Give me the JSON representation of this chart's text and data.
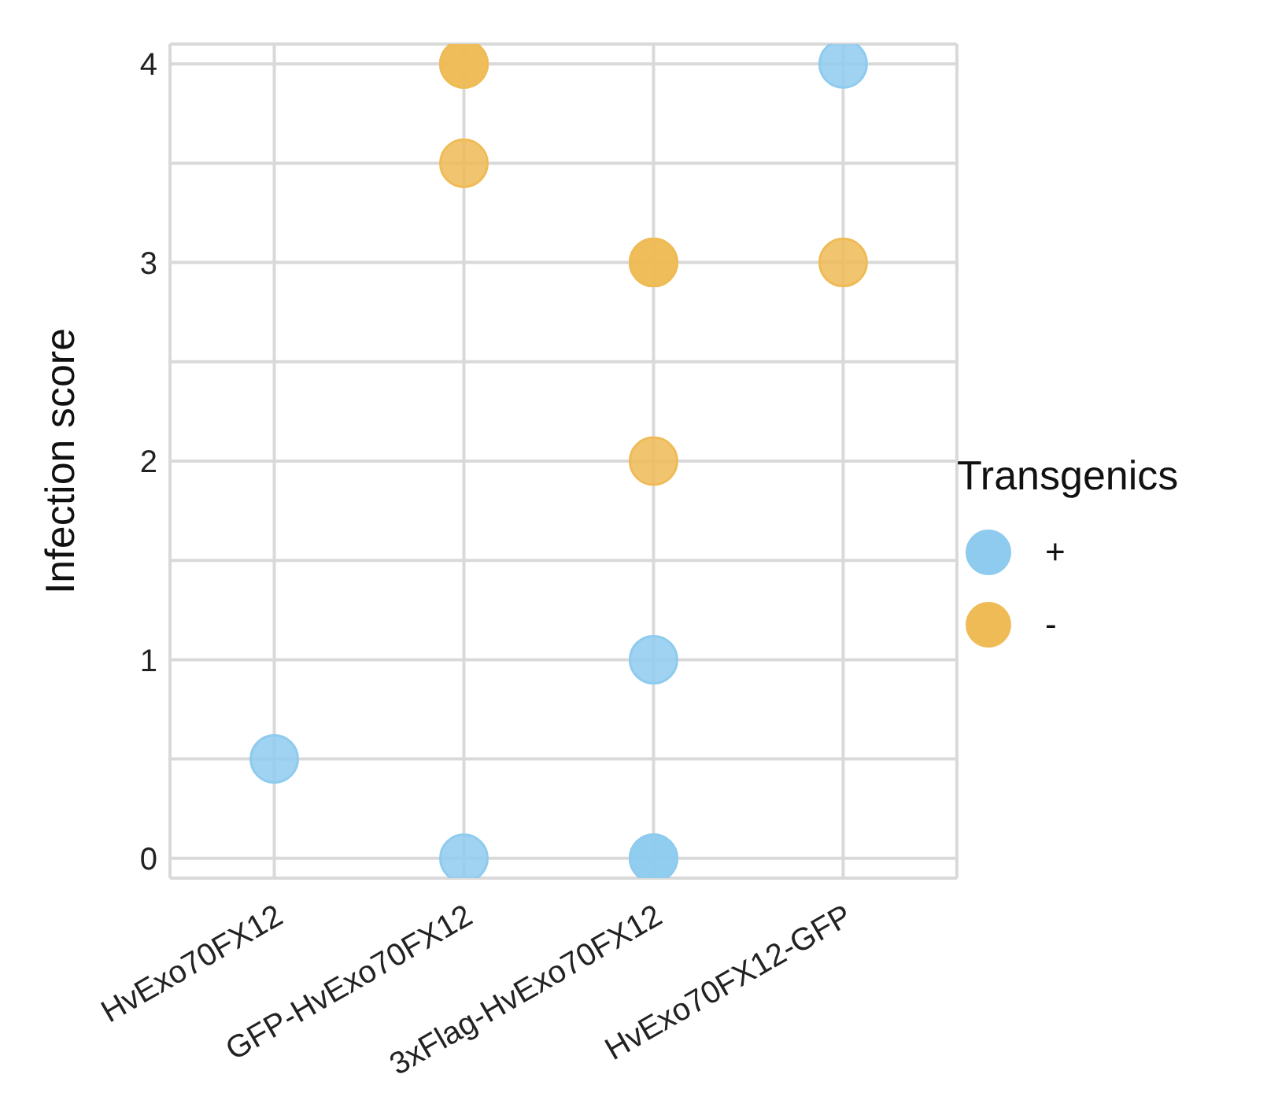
{
  "chart_data": {
    "type": "scatter",
    "ylabel": "Infection score",
    "legend_title": "Transgenics",
    "categories": [
      "HvExo70FX12",
      "GFP-HvExo70FX12",
      "3xFlag-HvExo70FX12",
      "HvExo70FX12-GFP"
    ],
    "series": [
      {
        "name": "+",
        "color": "#8ecbee",
        "x": [
          "HvExo70FX12",
          "GFP-HvExo70FX12",
          "3xFlag-HvExo70FX12",
          "3xFlag-HvExo70FX12",
          "3xFlag-HvExo70FX12",
          "HvExo70FX12-GFP"
        ],
        "values": [
          0.5,
          0,
          1,
          0,
          0,
          4
        ]
      },
      {
        "name": "-",
        "color": "#efbb56",
        "x": [
          "GFP-HvExo70FX12",
          "GFP-HvExo70FX12",
          "GFP-HvExo70FX12",
          "3xFlag-HvExo70FX12",
          "3xFlag-HvExo70FX12",
          "3xFlag-HvExo70FX12",
          "HvExo70FX12-GFP"
        ],
        "values": [
          4,
          4,
          3.5,
          3,
          3,
          2,
          3
        ]
      }
    ],
    "ylim": [
      -0.1,
      4.1
    ],
    "yticks": [
      0,
      {
        "value": 0.5,
        "label": null
      },
      1,
      {
        "value": 1.5,
        "label": null
      },
      2,
      {
        "value": 2.5,
        "label": null
      },
      3,
      {
        "value": 3.5,
        "label": null
      },
      4
    ],
    "grid": true,
    "legend": "right",
    "marker": "circle"
  }
}
